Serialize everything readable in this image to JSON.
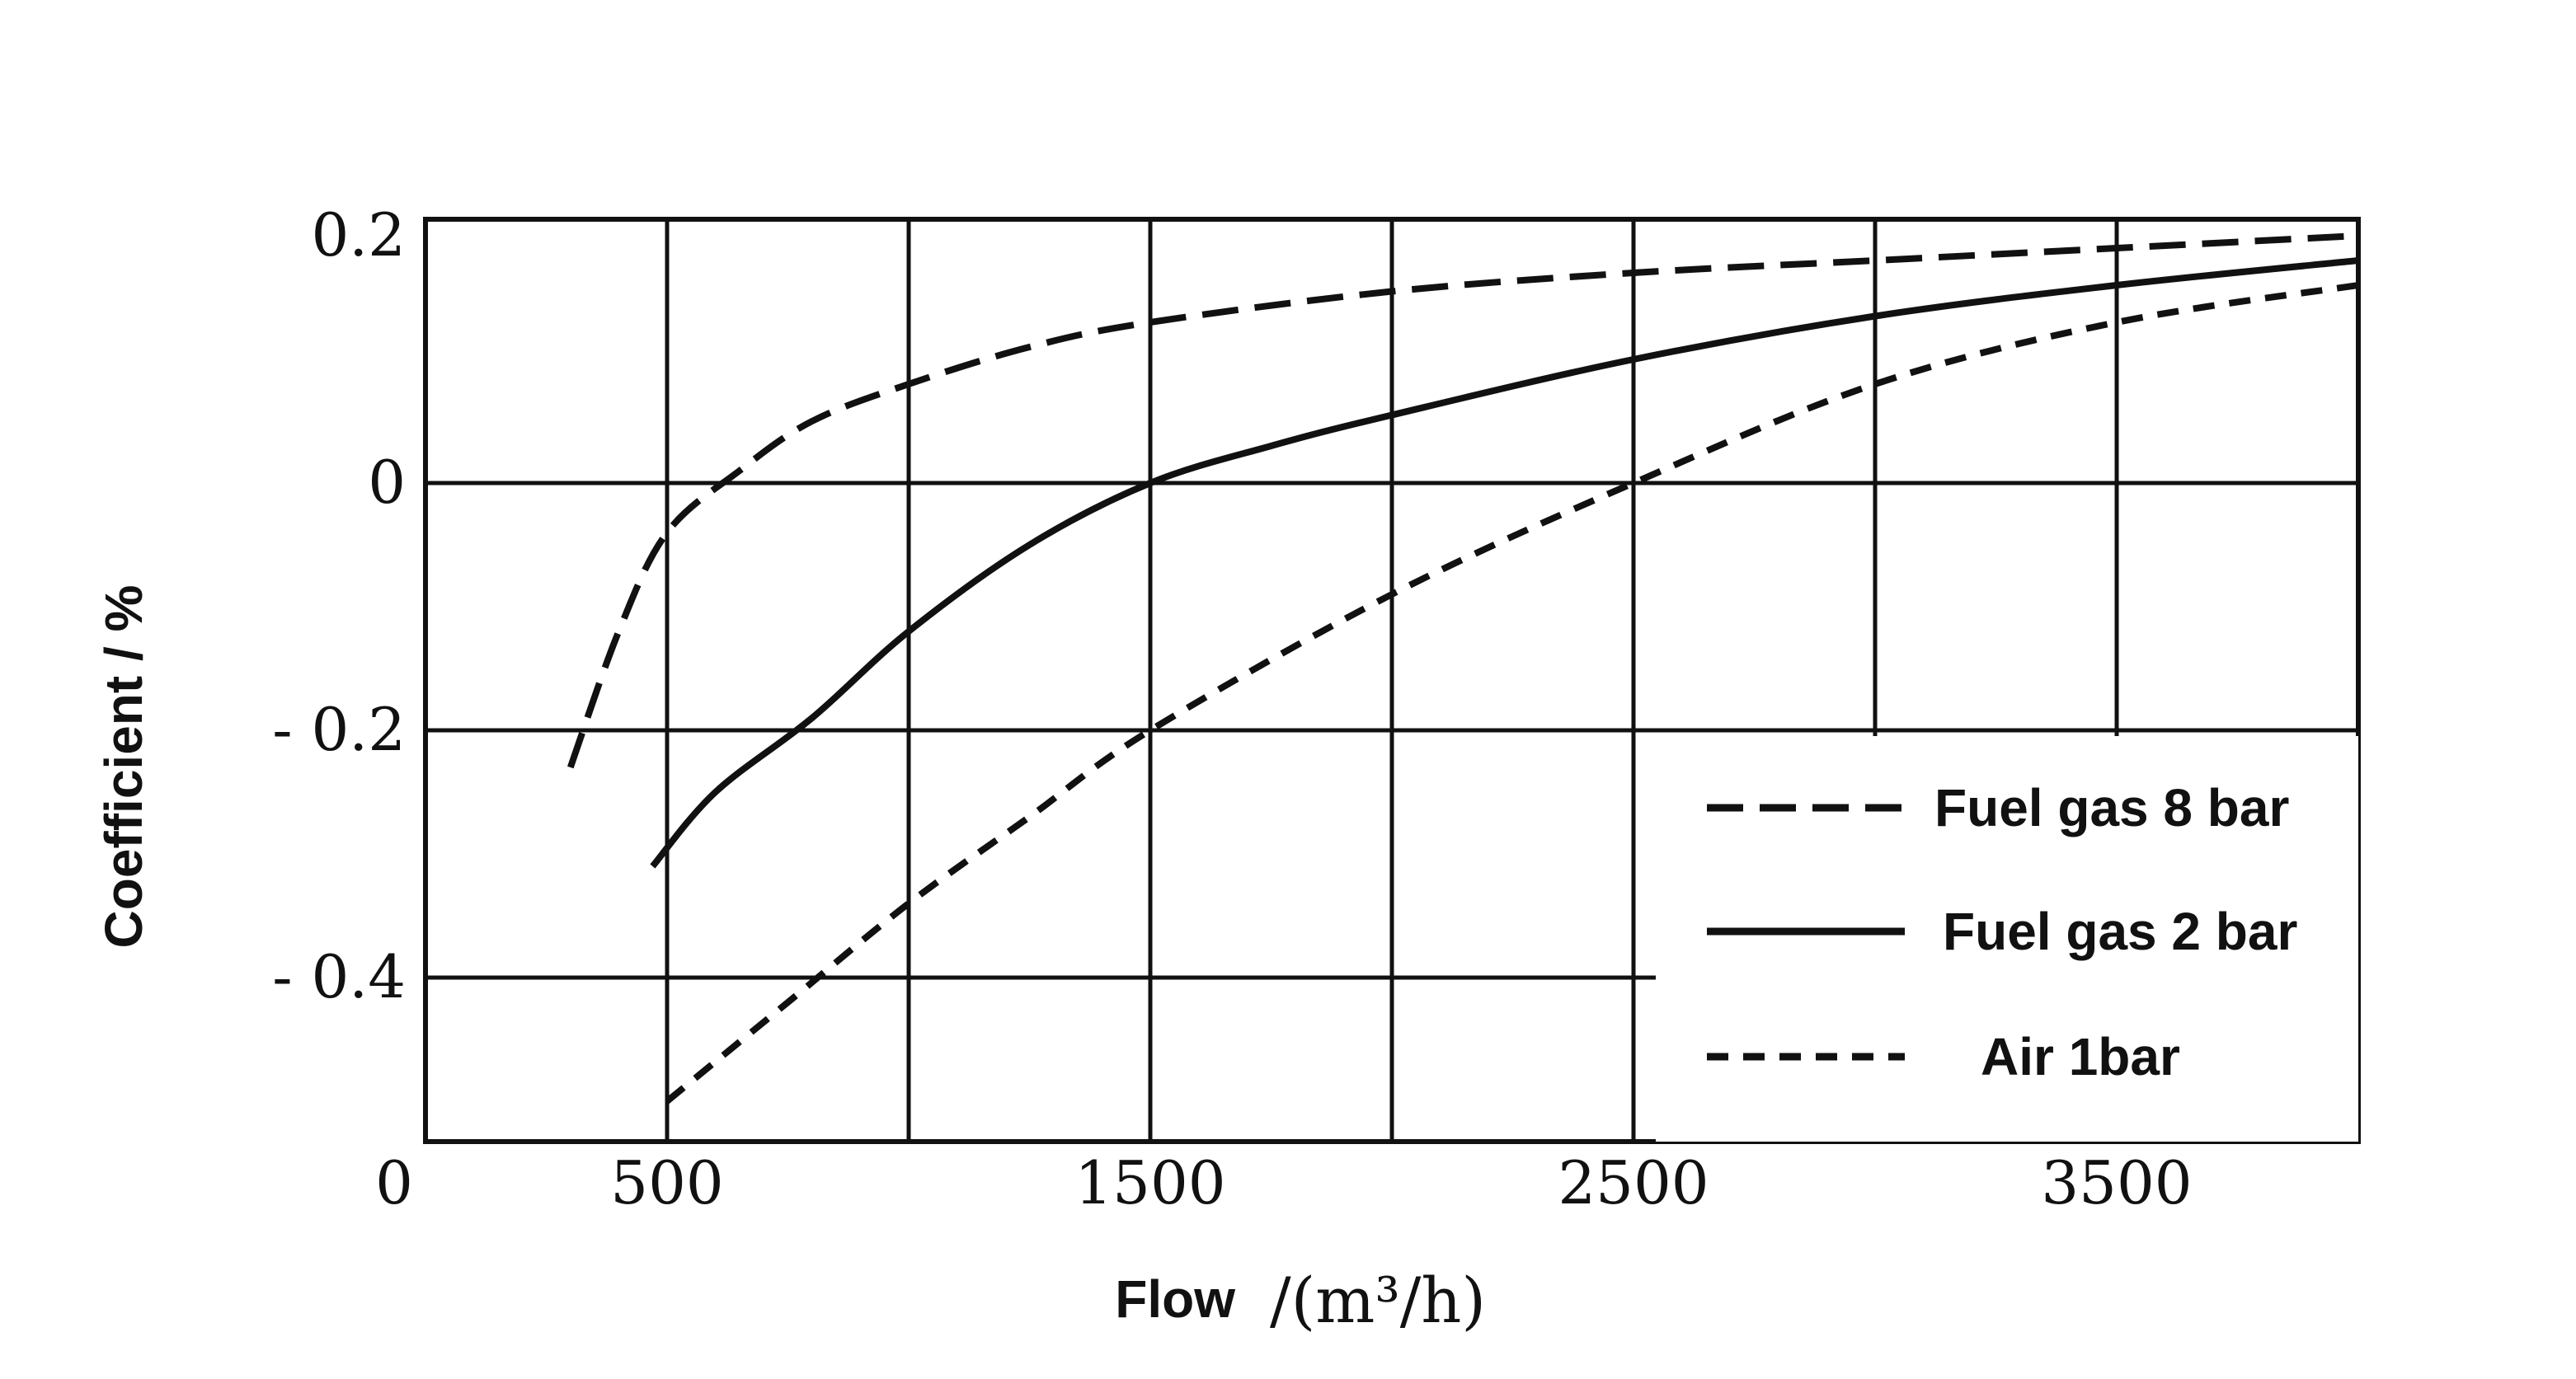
{
  "chart_data": {
    "type": "line",
    "xlabel": "Flow",
    "xunit": "/(m³/h)",
    "ylabel": "Coefficient / %",
    "xlim": [
      0,
      4000
    ],
    "ylim": [
      -0.54,
      0.2
    ],
    "x_ticks": [
      "0",
      "500",
      "1500",
      "2500",
      "3500"
    ],
    "y_ticks": [
      "0.2",
      "0",
      "- 0.2",
      "- 0.4"
    ],
    "grid": true,
    "legend_position": "bottom-right",
    "series": [
      {
        "name": "Fuel gas 8 bar",
        "style": "long-dash",
        "color": "#111111",
        "points": [
          [
            300,
            -0.23
          ],
          [
            400,
            -0.12
          ],
          [
            500,
            -0.04
          ],
          [
            650,
            0.01
          ],
          [
            800,
            0.05
          ],
          [
            1000,
            0.08
          ],
          [
            1250,
            0.11
          ],
          [
            1500,
            0.13
          ],
          [
            2000,
            0.155
          ],
          [
            2500,
            0.17
          ],
          [
            3000,
            0.18
          ],
          [
            3500,
            0.19
          ],
          [
            4000,
            0.2
          ]
        ]
      },
      {
        "name": "Fuel gas 2 bar",
        "style": "solid",
        "color": "#111111",
        "points": [
          [
            470,
            -0.31
          ],
          [
            600,
            -0.25
          ],
          [
            800,
            -0.19
          ],
          [
            1000,
            -0.12
          ],
          [
            1250,
            -0.05
          ],
          [
            1500,
            0.0
          ],
          [
            1750,
            0.03
          ],
          [
            2000,
            0.055
          ],
          [
            2500,
            0.1
          ],
          [
            3000,
            0.135
          ],
          [
            3500,
            0.16
          ],
          [
            4000,
            0.18
          ]
        ]
      },
      {
        "name": "Air 1bar",
        "style": "short-dash",
        "color": "#111111",
        "points": [
          [
            500,
            -0.5
          ],
          [
            750,
            -0.42
          ],
          [
            1000,
            -0.34
          ],
          [
            1250,
            -0.27
          ],
          [
            1500,
            -0.2
          ],
          [
            2000,
            -0.09
          ],
          [
            2500,
            0.0
          ],
          [
            3000,
            0.08
          ],
          [
            3500,
            0.13
          ],
          [
            4000,
            0.16
          ]
        ]
      }
    ]
  }
}
